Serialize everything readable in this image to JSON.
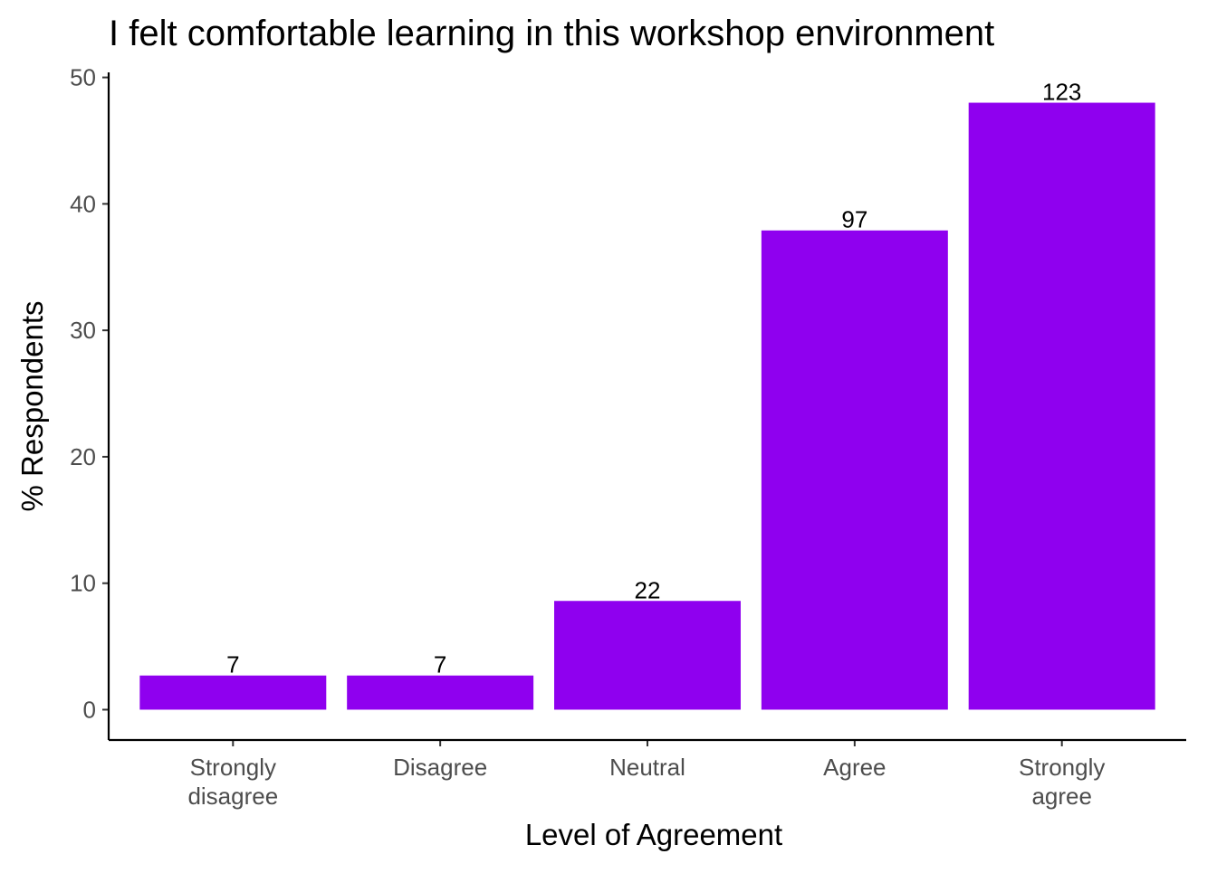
{
  "chart_data": {
    "type": "bar",
    "title": "I felt comfortable learning in this workshop environment",
    "xlabel": "Level of Agreement",
    "ylabel": "% Respondents",
    "categories": [
      [
        "Strongly",
        "disagree"
      ],
      [
        "Disagree"
      ],
      [
        "Neutral"
      ],
      [
        "Agree"
      ],
      [
        "Strongly",
        "agree"
      ]
    ],
    "values": [
      2.7,
      2.7,
      8.6,
      37.9,
      48.0
    ],
    "labels": [
      "7",
      "7",
      "22",
      "97",
      "123"
    ],
    "ylim": [
      -2.4,
      50.4
    ],
    "yticks": [
      0,
      10,
      20,
      30,
      40,
      50
    ],
    "ytick_labels": [
      "0",
      "10",
      "20",
      "30",
      "40",
      "50"
    ],
    "bar_color": "#8F00EF",
    "grid": false,
    "legend": "none"
  }
}
